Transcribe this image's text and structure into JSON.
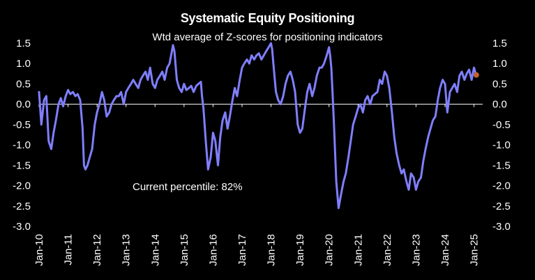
{
  "chart_data": {
    "type": "line",
    "title": "Systematic Equity Positioning",
    "subtitle": "Wtd average of Z-scores for positioning indicators",
    "annotation": "Current percentile: 82%",
    "ylim": [
      -3.0,
      1.5
    ],
    "y_ticks": [
      "1.5",
      "1.0",
      "0.5",
      "0.0",
      "-0.5",
      "-1.0",
      "-1.5",
      "-2.0",
      "-2.5",
      "-3.0"
    ],
    "y_tick_values": [
      1.5,
      1.0,
      0.5,
      0.0,
      -0.5,
      -1.0,
      -1.5,
      -2.0,
      -2.5,
      -3.0
    ],
    "x_ticks": [
      "Jan-10",
      "Jan-11",
      "Jan-12",
      "Jan-13",
      "Jan-14",
      "Jan-15",
      "Jan-16",
      "Jan-17",
      "Jan-18",
      "Jan-19",
      "Jan-20",
      "Jan-21",
      "Jan-22",
      "Jan-23",
      "Jan-24",
      "Jan-25"
    ],
    "x_tick_values": [
      2010,
      2011,
      2012,
      2013,
      2014,
      2015,
      2016,
      2017,
      2018,
      2019,
      2020,
      2021,
      2022,
      2023,
      2024,
      2025
    ],
    "xlim": [
      2010.0,
      2025.3
    ],
    "grid": false,
    "legend": "none",
    "series_color": "#7f7fff",
    "current_marker_color": "#c0642a",
    "series": [
      {
        "x": [
          2010.0,
          2010.08,
          2010.17,
          2010.25,
          2010.33,
          2010.42,
          2010.5,
          2010.58,
          2010.67,
          2010.75,
          2010.83,
          2010.92,
          2011.0,
          2011.08,
          2011.17,
          2011.25,
          2011.33,
          2011.42,
          2011.5,
          2011.55,
          2011.6,
          2011.67,
          2011.75,
          2011.83,
          2011.92,
          2012.0,
          2012.08,
          2012.17,
          2012.25,
          2012.33,
          2012.42,
          2012.5,
          2012.58,
          2012.67,
          2012.75,
          2012.83,
          2012.92,
          2013.0,
          2013.08,
          2013.17,
          2013.25,
          2013.33,
          2013.42,
          2013.5,
          2013.58,
          2013.67,
          2013.75,
          2013.83,
          2013.92,
          2014.0,
          2014.08,
          2014.17,
          2014.25,
          2014.33,
          2014.42,
          2014.5,
          2014.58,
          2014.62,
          2014.67,
          2014.75,
          2014.83,
          2014.92,
          2015.0,
          2015.08,
          2015.17,
          2015.25,
          2015.33,
          2015.42,
          2015.5,
          2015.58,
          2015.62,
          2015.67,
          2015.75,
          2015.83,
          2015.92,
          2016.0,
          2016.08,
          2016.17,
          2016.25,
          2016.33,
          2016.42,
          2016.5,
          2016.58,
          2016.67,
          2016.75,
          2016.83,
          2016.92,
          2017.0,
          2017.08,
          2017.17,
          2017.25,
          2017.33,
          2017.42,
          2017.5,
          2017.58,
          2017.67,
          2017.75,
          2017.83,
          2017.92,
          2018.0,
          2018.04,
          2018.08,
          2018.17,
          2018.25,
          2018.33,
          2018.42,
          2018.5,
          2018.58,
          2018.67,
          2018.75,
          2018.83,
          2018.92,
          2019.0,
          2019.08,
          2019.17,
          2019.25,
          2019.33,
          2019.42,
          2019.5,
          2019.58,
          2019.67,
          2019.75,
          2019.83,
          2019.92,
          2020.0,
          2020.04,
          2020.08,
          2020.12,
          2020.17,
          2020.25,
          2020.33,
          2020.42,
          2020.5,
          2020.58,
          2020.67,
          2020.75,
          2020.83,
          2020.92,
          2021.0,
          2021.08,
          2021.17,
          2021.25,
          2021.33,
          2021.42,
          2021.5,
          2021.58,
          2021.67,
          2021.75,
          2021.83,
          2021.92,
          2022.0,
          2022.08,
          2022.17,
          2022.25,
          2022.33,
          2022.42,
          2022.5,
          2022.58,
          2022.67,
          2022.75,
          2022.83,
          2022.92,
          2023.0,
          2023.08,
          2023.17,
          2023.25,
          2023.33,
          2023.42,
          2023.5,
          2023.58,
          2023.67,
          2023.75,
          2023.83,
          2023.92,
          2024.0,
          2024.08,
          2024.17,
          2024.25,
          2024.33,
          2024.42,
          2024.5,
          2024.58,
          2024.67,
          2024.75,
          2024.83,
          2024.92,
          2025.0,
          2025.08
        ],
        "values": [
          0.3,
          -0.5,
          0.1,
          0.2,
          -0.9,
          -1.1,
          -0.7,
          -0.4,
          0.0,
          0.15,
          -0.05,
          0.2,
          0.35,
          0.25,
          0.3,
          0.2,
          0.25,
          0.1,
          -0.6,
          -1.5,
          -1.6,
          -1.5,
          -1.3,
          -1.1,
          -0.5,
          -0.2,
          0.0,
          0.3,
          0.1,
          -0.3,
          -0.2,
          0.0,
          0.1,
          0.2,
          0.2,
          0.3,
          0.0,
          0.3,
          0.4,
          0.5,
          0.6,
          0.5,
          0.4,
          0.6,
          0.7,
          0.8,
          0.6,
          0.9,
          0.5,
          0.4,
          0.6,
          0.7,
          0.8,
          0.6,
          0.9,
          1.0,
          1.3,
          1.45,
          1.3,
          0.6,
          0.4,
          0.3,
          0.5,
          0.35,
          0.4,
          0.45,
          0.3,
          0.45,
          0.5,
          0.55,
          0.2,
          -0.1,
          -0.9,
          -1.6,
          -1.3,
          -0.7,
          -0.9,
          -1.5,
          -0.8,
          -0.4,
          -0.2,
          -0.6,
          -0.3,
          0.1,
          0.4,
          0.2,
          0.6,
          0.9,
          1.0,
          1.1,
          1.0,
          1.2,
          1.1,
          1.2,
          1.25,
          1.1,
          1.2,
          1.3,
          1.4,
          1.5,
          1.35,
          1.0,
          0.3,
          0.1,
          0.0,
          0.2,
          0.5,
          0.7,
          0.8,
          0.6,
          0.3,
          -0.5,
          -0.7,
          -0.6,
          -0.1,
          0.3,
          0.5,
          0.2,
          0.4,
          0.7,
          0.9,
          0.9,
          1.0,
          1.2,
          1.4,
          1.2,
          0.9,
          0.3,
          -0.5,
          -1.9,
          -2.55,
          -2.2,
          -1.9,
          -1.7,
          -1.3,
          -0.9,
          -0.5,
          -0.3,
          -0.1,
          0.0,
          -0.2,
          0.1,
          0.2,
          0.0,
          0.2,
          0.25,
          0.3,
          0.6,
          0.5,
          0.8,
          0.7,
          0.4,
          -0.2,
          -0.8,
          -1.2,
          -1.5,
          -1.7,
          -1.6,
          -1.9,
          -2.1,
          -1.7,
          -1.8,
          -2.1,
          -1.9,
          -1.8,
          -1.4,
          -1.1,
          -0.8,
          -0.6,
          -0.4,
          -0.3,
          0.1,
          0.4,
          0.6,
          0.5,
          -0.2,
          0.3,
          0.4,
          0.5,
          0.3,
          0.7,
          0.8,
          0.6,
          0.75,
          0.85,
          0.6,
          0.9,
          0.7
        ]
      }
    ],
    "current_point": {
      "x": 2025.08,
      "y": 0.72
    }
  }
}
